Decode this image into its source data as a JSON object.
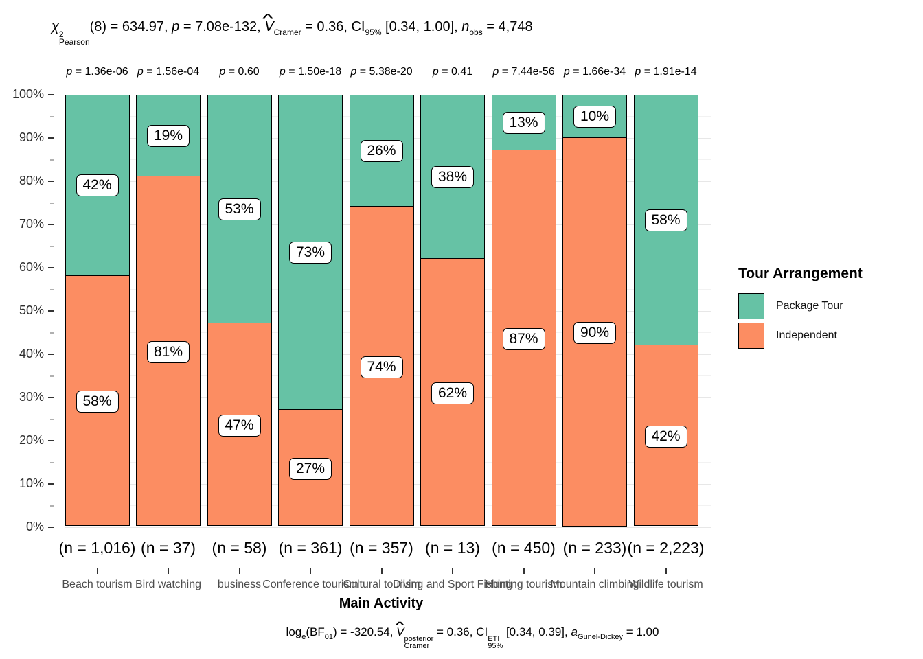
{
  "stats_title": {
    "chi": "χ",
    "chi_sup": "2",
    "chi_sub": "Pearson",
    "seg_df": "(8) = 634.97, ",
    "p": "p",
    "seg_p": " = 7.08e-132, ",
    "hat": "^",
    "v": "V",
    "v_sub": "Cramer",
    "seg_v": " = 0.36, CI",
    "ci_sub": "95%",
    "seg_ci": " [0.34, 1.00], ",
    "n": "n",
    "n_sub": "obs",
    "seg_n": " = 4,748"
  },
  "caption": {
    "log": "log",
    "log_sub": "e",
    "seg_bf_open": "(BF",
    "bf_sub": "01",
    "seg_bf": ") = -320.54, ",
    "hat": "^",
    "v": "V",
    "v_sup": "posterior",
    "v_sub": "Cramer",
    "seg_v": " = 0.36, CI",
    "ci_sup": "ETI",
    "ci_sub": "95%",
    "seg_ci": " [0.34, 0.39], ",
    "a": "a",
    "a_sub": "Gunel-Dickey",
    "seg_a": " = 1.00"
  },
  "legend": {
    "title": "Tour Arrangement",
    "items": [
      {
        "label": "Package Tour",
        "color": "#66C2A5"
      },
      {
        "label": "Independent",
        "color": "#FC8D62"
      }
    ]
  },
  "x_axis": {
    "title": "Main Activity"
  },
  "y_axis": {
    "tick_labels": [
      "100%",
      "90%",
      "80%",
      "70%",
      "60%",
      "50%",
      "40%",
      "30%",
      "20%",
      "10%",
      "0%"
    ]
  },
  "chart_data": {
    "type": "bar",
    "subtype": "stacked-percent",
    "title": "",
    "xlabel": "Main Activity",
    "ylabel": "",
    "ylim": [
      "0%",
      "100%"
    ],
    "grid": "horizontal, every 5%",
    "legend_position": "right",
    "categories": [
      "Beach tourism",
      "Bird watching",
      "business",
      "Conference tourism",
      "Cultural tourism",
      "Diving and Sport Fishing",
      "Hunting tourism",
      "Mountain climbing",
      "Wildlife tourism"
    ],
    "series": [
      {
        "name": "Package Tour",
        "color": "#66C2A5",
        "values": [
          42,
          19,
          53,
          73,
          26,
          38,
          13,
          10,
          58
        ]
      },
      {
        "name": "Independent",
        "color": "#FC8D62",
        "values": [
          58,
          81,
          47,
          27,
          74,
          62,
          87,
          90,
          42
        ]
      }
    ],
    "value_suffix": "%",
    "n_labels": [
      "(n = 1,016)",
      "(n = 37)",
      "(n = 58)",
      "(n = 361)",
      "(n = 357)",
      "(n = 13)",
      "(n = 450)",
      "(n = 233)",
      "(n = 2,223)"
    ],
    "p_labels": [
      "p = 1.36e-06",
      "p = 1.56e-04",
      "p = 0.60",
      "p = 1.50e-18",
      "p = 5.38e-20",
      "p = 0.41",
      "p = 7.44e-56",
      "p = 1.66e-34",
      "p = 1.91e-14"
    ]
  }
}
